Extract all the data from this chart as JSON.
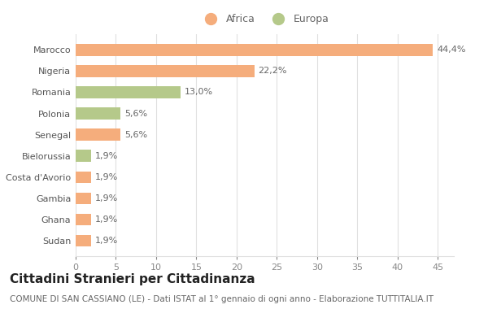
{
  "categories": [
    "Sudan",
    "Ghana",
    "Gambia",
    "Costa d'Avorio",
    "Bielorussia",
    "Senegal",
    "Polonia",
    "Romania",
    "Nigeria",
    "Marocco"
  ],
  "values": [
    1.9,
    1.9,
    1.9,
    1.9,
    1.9,
    5.6,
    5.6,
    13.0,
    22.2,
    44.4
  ],
  "colors": [
    "#f5ad7c",
    "#f5ad7c",
    "#f5ad7c",
    "#f5ad7c",
    "#b5c98a",
    "#f5ad7c",
    "#b5c98a",
    "#b5c98a",
    "#f5ad7c",
    "#f5ad7c"
  ],
  "labels": [
    "1,9%",
    "1,9%",
    "1,9%",
    "1,9%",
    "1,9%",
    "5,6%",
    "5,6%",
    "13,0%",
    "22,2%",
    "44,4%"
  ],
  "title": "Cittadini Stranieri per Cittadinanza",
  "subtitle": "COMUNE DI SAN CASSIANO (LE) - Dati ISTAT al 1° gennaio di ogni anno - Elaborazione TUTTITALIA.IT",
  "xlim": [
    0,
    47
  ],
  "xticks": [
    0,
    5,
    10,
    15,
    20,
    25,
    30,
    35,
    40,
    45
  ],
  "legend_africa_color": "#f5ad7c",
  "legend_europa_color": "#b5c98a",
  "bg_color": "#ffffff",
  "grid_color": "#e0e0e0",
  "bar_height": 0.55,
  "label_fontsize": 8,
  "tick_fontsize": 8,
  "title_fontsize": 11,
  "subtitle_fontsize": 7.5
}
